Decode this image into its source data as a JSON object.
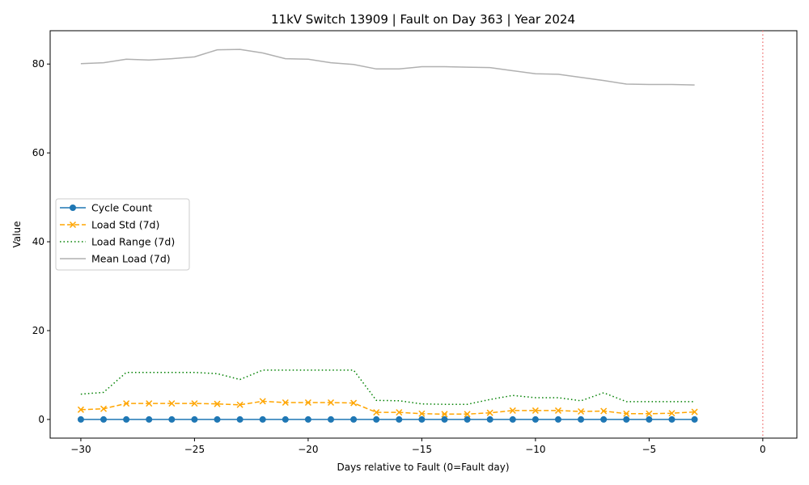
{
  "chart_data": {
    "type": "line",
    "title": "11kV Switch 13909 | Fault on Day 363 | Year 2024",
    "xlabel": "Days relative to Fault (0=Fault day)",
    "ylabel": "Value",
    "xlim": [
      -31.35,
      1.5
    ],
    "ylim": [
      -4.2,
      87.5
    ],
    "x_ticks": [
      -30,
      -25,
      -20,
      -15,
      -10,
      -5,
      0
    ],
    "x_tick_labels": [
      "−30",
      "−25",
      "−20",
      "−15",
      "−10",
      "−5",
      "0"
    ],
    "y_ticks": [
      0,
      20,
      40,
      60,
      80
    ],
    "y_tick_labels": [
      "0",
      "20",
      "40",
      "60",
      "80"
    ],
    "grid": false,
    "legend_position": "center-left",
    "fault_line": {
      "x": 0,
      "color": "#f08080",
      "style": "dotted"
    },
    "x": [
      -30,
      -29,
      -28,
      -27,
      -26,
      -25,
      -24,
      -23,
      -22,
      -21,
      -20,
      -19,
      -18,
      -17,
      -16,
      -15,
      -14,
      -13,
      -12,
      -11,
      -10,
      -9,
      -8,
      -7,
      -6,
      -5,
      -4,
      -3
    ],
    "series": [
      {
        "name": "Cycle Count",
        "color": "#1f77b4",
        "line_style": "solid",
        "marker": "circle",
        "values": [
          0,
          0,
          0,
          0,
          0,
          0,
          0,
          0,
          0,
          0,
          0,
          0,
          0,
          0,
          0,
          0,
          0,
          0,
          0,
          0,
          0,
          0,
          0,
          0,
          0,
          0,
          0,
          0
        ]
      },
      {
        "name": "Load Std (7d)",
        "color": "#ffa500",
        "line_style": "dashed",
        "marker": "x",
        "values": [
          2.2,
          2.4,
          3.6,
          3.6,
          3.6,
          3.6,
          3.5,
          3.3,
          4.1,
          3.8,
          3.8,
          3.8,
          3.7,
          1.6,
          1.6,
          1.3,
          1.2,
          1.2,
          1.5,
          2.0,
          2.0,
          2.0,
          1.8,
          1.9,
          1.3,
          1.3,
          1.4,
          1.7
        ]
      },
      {
        "name": "Load Range (7d)",
        "color": "#008000",
        "line_style": "dotted",
        "marker": "none",
        "values": [
          5.7,
          6.1,
          10.6,
          10.6,
          10.6,
          10.6,
          10.3,
          9.0,
          11.1,
          11.1,
          11.1,
          11.1,
          11.1,
          4.3,
          4.2,
          3.5,
          3.4,
          3.4,
          4.5,
          5.4,
          4.9,
          4.9,
          4.2,
          6.0,
          4.0,
          4.0,
          4.0,
          4.0
        ]
      },
      {
        "name": "Mean Load (7d)",
        "color": "#b0b0b0",
        "line_style": "solid",
        "marker": "none",
        "values": [
          80.1,
          80.3,
          81.1,
          80.9,
          81.2,
          81.6,
          83.2,
          83.3,
          82.5,
          81.2,
          81.1,
          80.3,
          79.9,
          78.9,
          78.9,
          79.4,
          79.4,
          79.3,
          79.2,
          78.5,
          77.8,
          77.7,
          77.0,
          76.3,
          75.5,
          75.4,
          75.4,
          75.3
        ]
      }
    ]
  }
}
